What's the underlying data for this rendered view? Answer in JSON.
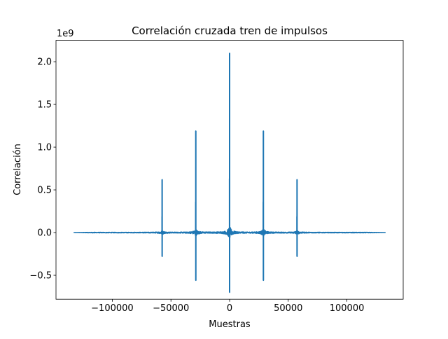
{
  "chart_data": {
    "type": "line",
    "title": "Correlación cruzada tren de impulsos",
    "xlabel": "Muestras",
    "ylabel": "Correlación",
    "y_offset_label": "1e9",
    "xlim": [
      -148000,
      148000
    ],
    "ylim": [
      -0.78,
      2.25
    ],
    "x_ticks": [
      -100000,
      -50000,
      0,
      50000,
      100000
    ],
    "x_tick_labels": [
      "−100000",
      "−50000",
      "0",
      "50000",
      "100000"
    ],
    "y_ticks": [
      -0.5,
      0.0,
      0.5,
      1.0,
      1.5,
      2.0
    ],
    "y_tick_labels": [
      "−0.5",
      "0.0",
      "0.5",
      "1.0",
      "1.5",
      "2.0"
    ],
    "grid": false,
    "series": [
      {
        "color": "#1f77b4",
        "x_range": [
          -133000,
          133000
        ],
        "peaks": [
          {
            "x": -57500,
            "max": 0.62,
            "min": -0.28
          },
          {
            "x": -28800,
            "max": 1.19,
            "min": -0.56
          },
          {
            "x": 0,
            "max": 2.1,
            "min": -0.7
          },
          {
            "x": 28800,
            "max": 1.19,
            "min": -0.56
          },
          {
            "x": 57500,
            "max": 0.62,
            "min": -0.28
          }
        ]
      }
    ]
  }
}
